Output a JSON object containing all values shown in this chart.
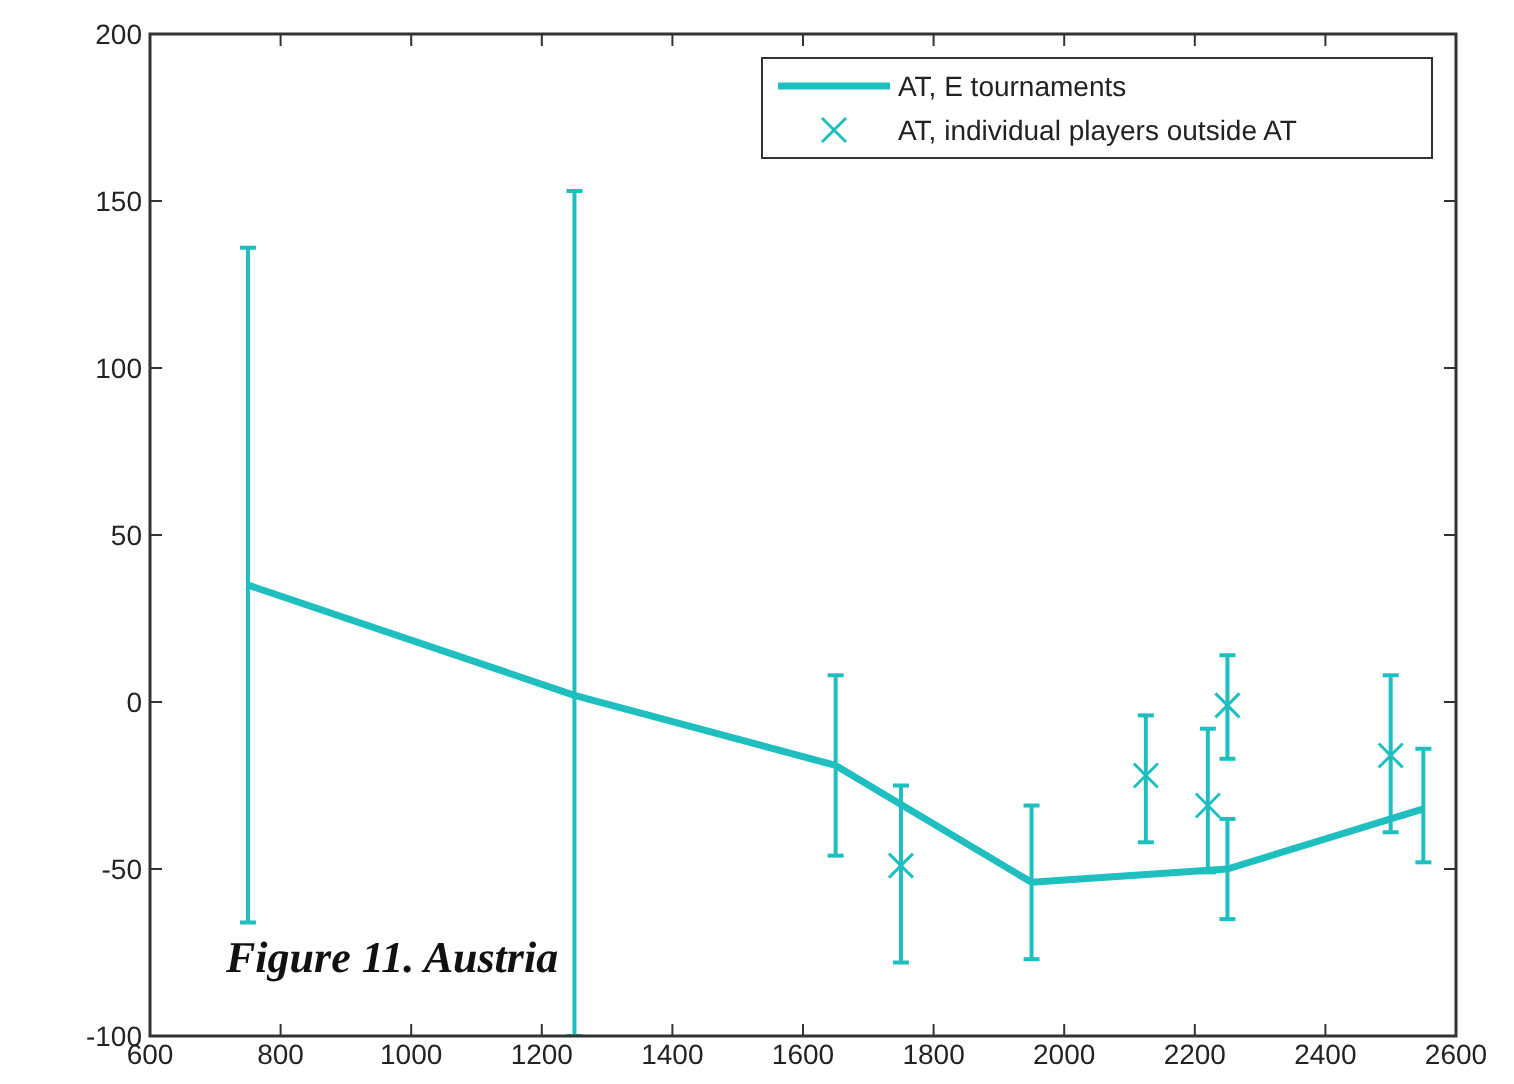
{
  "chart_data": {
    "type": "line",
    "xlim": [
      600,
      2600
    ],
    "xticks": [
      600,
      800,
      1000,
      1200,
      1400,
      1600,
      1800,
      2000,
      2200,
      2400,
      2600
    ],
    "ylim": [
      -100,
      200
    ],
    "yticks": [
      -100,
      -50,
      0,
      50,
      100,
      150,
      200
    ],
    "grid": false,
    "legend": "top right",
    "annotations": [
      "Figure 11. Austria"
    ],
    "series": [
      {
        "name": "AT, E tournaments",
        "color": "#1fbfbf",
        "marker": "none",
        "x": [
          750,
          1250,
          1650,
          1950,
          2250,
          2550
        ],
        "values": [
          35,
          2,
          -19,
          -54,
          -50,
          -32
        ],
        "errors": [
          [
            -66,
            136
          ],
          [
            -100,
            153
          ],
          [
            -46,
            8
          ],
          [
            -77,
            -31
          ],
          [
            -65,
            -35
          ],
          [
            -48,
            -14
          ]
        ]
      },
      {
        "name": "AT, individual players outside AT",
        "type": "scatter",
        "color": "#1fbfbf",
        "marker": "cross",
        "x": [
          1750,
          2125,
          2220,
          2250,
          2500
        ],
        "values": [
          -49,
          -22,
          -31,
          -1,
          -16
        ],
        "errors": [
          [
            -78,
            -25
          ],
          [
            -42,
            -4
          ],
          [
            -51,
            -8
          ],
          [
            -17,
            14
          ],
          [
            -39,
            8
          ]
        ]
      }
    ]
  }
}
